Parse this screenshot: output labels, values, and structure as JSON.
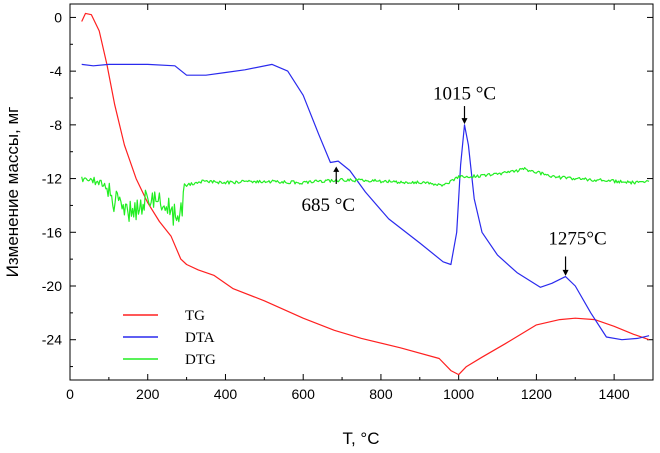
{
  "chart_data": {
    "type": "line",
    "title": "",
    "xlabel": "T, °C",
    "ylabel": "Изменение массы, мг",
    "xlim": [
      0,
      1500
    ],
    "ylim": [
      -27,
      1
    ],
    "x_ticks": [
      "0",
      "200",
      "400",
      "600",
      "800",
      "1000",
      "1200",
      "1400"
    ],
    "y_ticks": [
      "0",
      "-4",
      "-8",
      "-12",
      "-16",
      "-20",
      "-24"
    ],
    "grid": false,
    "legend_position": "bottom-left",
    "series": [
      {
        "name": "TG",
        "color": "#ff2020",
        "x": [
          30,
          40,
          55,
          75,
          95,
          115,
          140,
          170,
          200,
          230,
          260,
          285,
          300,
          330,
          370,
          420,
          500,
          600,
          680,
          750,
          850,
          950,
          980,
          1000,
          1020,
          1060,
          1120,
          1200,
          1260,
          1300,
          1350,
          1400,
          1450,
          1490
        ],
        "values": [
          -0.3,
          0.3,
          0.2,
          -1.0,
          -3.5,
          -6.5,
          -9.5,
          -12.0,
          -13.8,
          -15.2,
          -16.3,
          -18.0,
          -18.4,
          -18.8,
          -19.2,
          -20.2,
          -21.1,
          -22.4,
          -23.3,
          -23.9,
          -24.6,
          -25.4,
          -26.3,
          -26.6,
          -26.0,
          -25.3,
          -24.3,
          -22.9,
          -22.5,
          -22.4,
          -22.5,
          -23.0,
          -23.6,
          -24.0
        ]
      },
      {
        "name": "DTA",
        "color": "#2a2aee",
        "x": [
          30,
          60,
          100,
          200,
          270,
          300,
          350,
          400,
          450,
          520,
          560,
          600,
          640,
          670,
          690,
          720,
          760,
          820,
          900,
          960,
          980,
          995,
          1005,
          1015,
          1025,
          1040,
          1060,
          1100,
          1150,
          1210,
          1240,
          1275,
          1300,
          1340,
          1380,
          1420,
          1460,
          1490
        ],
        "values": [
          -3.5,
          -3.6,
          -3.5,
          -3.5,
          -3.6,
          -4.3,
          -4.3,
          -4.1,
          -3.9,
          -3.5,
          -4.0,
          -5.8,
          -8.7,
          -10.8,
          -10.7,
          -11.4,
          -13.0,
          -15.0,
          -16.8,
          -18.2,
          -18.4,
          -16.0,
          -11.0,
          -8.0,
          -9.5,
          -13.5,
          -16.0,
          -17.7,
          -19.0,
          -20.1,
          -19.8,
          -19.3,
          -20.0,
          -22.0,
          -23.8,
          -24.0,
          -23.9,
          -23.7
        ]
      },
      {
        "name": "DTG",
        "color": "#22ee22",
        "x": [
          30,
          50,
          80,
          110,
          140,
          170,
          200,
          230,
          260,
          280,
          300,
          340,
          400,
          500,
          600,
          700,
          800,
          900,
          960,
          1000,
          1100,
          1170,
          1250,
          1350,
          1450,
          1490
        ],
        "values": [
          -12.2,
          -12.0,
          -12.3,
          -13.5,
          -14.6,
          -14.2,
          -13.6,
          -13.7,
          -14.5,
          -15.0,
          -12.5,
          -12.2,
          -12.3,
          -12.2,
          -12.3,
          -12.1,
          -12.2,
          -12.3,
          -12.5,
          -11.9,
          -11.7,
          -11.3,
          -11.9,
          -12.1,
          -12.3,
          -12.2
        ]
      }
    ],
    "annotations": [
      {
        "text": "1015 °C",
        "x": 1015,
        "y": -8.0
      },
      {
        "text": "685 °C",
        "x": 685,
        "y": -11.5
      },
      {
        "text": "1275°C",
        "x": 1275,
        "y": -19.3
      }
    ]
  }
}
